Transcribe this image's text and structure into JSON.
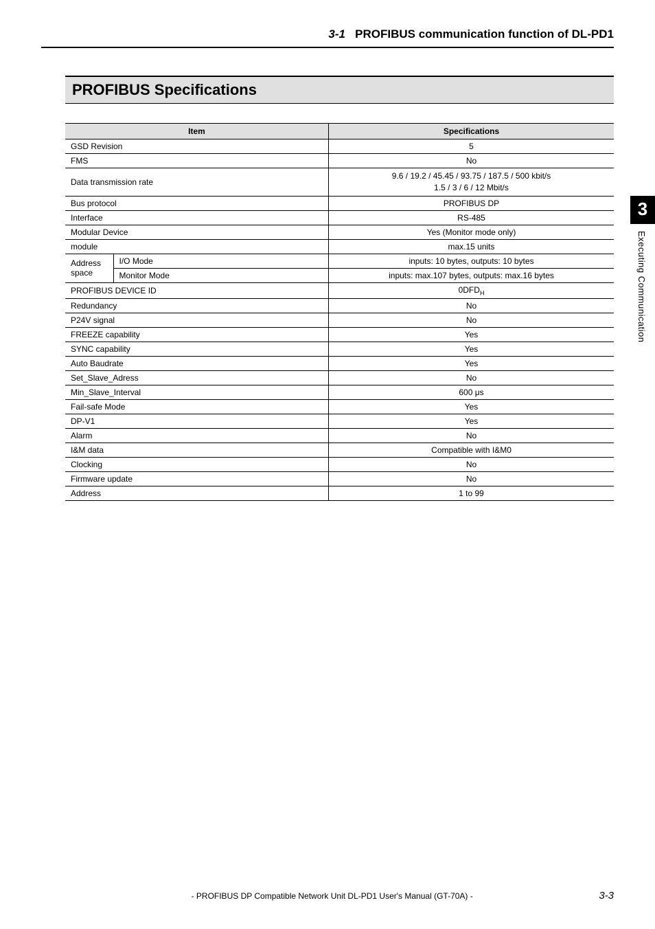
{
  "header": {
    "chapter_num": "3-1",
    "chapter_title": "PROFIBUS communication function of DL-PD1"
  },
  "section_heading": "PROFIBUS Specifications",
  "table": {
    "col_item": "Item",
    "col_spec": "Specifications",
    "rows": [
      {
        "label": "GSD Revision",
        "value": "5"
      },
      {
        "label": "FMS",
        "value": "No"
      },
      {
        "label": "Data transmission rate",
        "value": "9.6 / 19.2 / 45.45 / 93.75 / 187.5 / 500 kbit/s\n1.5 / 3 / 6 / 12 Mbit/s"
      },
      {
        "label": "Bus protocol",
        "value": "PROFIBUS DP"
      },
      {
        "label": "Interface",
        "value": "RS-485"
      },
      {
        "label": "Modular Device",
        "value": "Yes (Monitor mode only)"
      },
      {
        "label": "module",
        "value": "max.15 units"
      }
    ],
    "address_group": {
      "group_label": "Address space",
      "sub": [
        {
          "label": "I/O Mode",
          "value": "inputs: 10 bytes, outputs: 10 bytes"
        },
        {
          "label": "Monitor Mode",
          "value": "inputs: max.107 bytes, outputs: max.16 bytes"
        }
      ]
    },
    "rows2": [
      {
        "label": "PROFIBUS DEVICE ID",
        "value_pre": "0DFD",
        "value_sub": "H"
      },
      {
        "label": "Redundancy",
        "value": "No"
      },
      {
        "label": "P24V signal",
        "value": "No"
      },
      {
        "label": "FREEZE capability",
        "value": "Yes"
      },
      {
        "label": "SYNC capability",
        "value": "Yes"
      },
      {
        "label": "Auto Baudrate",
        "value": "Yes"
      },
      {
        "label": "Set_Slave_Adress",
        "value": "No"
      },
      {
        "label": "Min_Slave_Interval",
        "value": "600 μs"
      },
      {
        "label": "Fail-safe Mode",
        "value": "Yes"
      },
      {
        "label": "DP-V1",
        "value": "Yes"
      },
      {
        "label": "Alarm",
        "value": "No"
      },
      {
        "label": "I&M data",
        "value": "Compatible with I&M0"
      },
      {
        "label": "Clocking",
        "value": "No"
      },
      {
        "label": "Firmware update",
        "value": "No"
      },
      {
        "label": "Address",
        "value": "1 to 99"
      }
    ]
  },
  "side_tab": {
    "num": "3",
    "text": "Executing Communication"
  },
  "footer": {
    "center": "- PROFIBUS DP Compatible Network Unit DL-PD1 User's Manual (GT-70A) -",
    "page": "3-3"
  }
}
